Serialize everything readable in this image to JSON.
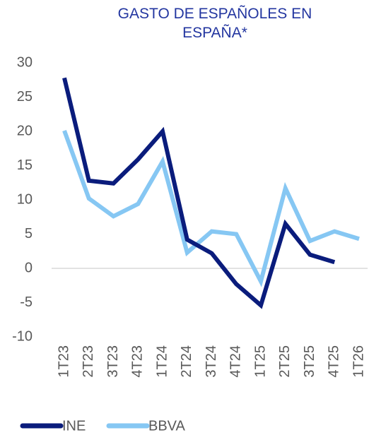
{
  "chart_data": {
    "type": "line",
    "title": "GASTO DE ESPAÑOLES EN ESPAÑA*",
    "categories": [
      "1T23",
      "2T23",
      "3T23",
      "4T23",
      "1T24",
      "2T24",
      "3T24",
      "4T24",
      "1T25",
      "2T25",
      "3T25",
      "4T25",
      "1T26"
    ],
    "series": [
      {
        "name": "INE",
        "color": "#0a1c7c",
        "values": [
          27.8,
          12.8,
          12.4,
          15.9,
          20.0,
          4.2,
          2.2,
          -2.3,
          -5.4,
          6.5,
          2.0,
          0.9,
          null
        ]
      },
      {
        "name": "BBVA",
        "color": "#86c7f3",
        "values": [
          20.1,
          10.2,
          7.6,
          9.4,
          15.6,
          2.3,
          5.4,
          5.0,
          -1.9,
          11.7,
          4.0,
          5.4,
          4.3
        ]
      }
    ],
    "ylim": [
      -10,
      30
    ],
    "yticks": [
      -10,
      -5,
      0,
      5,
      10,
      15,
      20,
      25,
      30
    ],
    "grid": false,
    "legend": "bottom"
  }
}
